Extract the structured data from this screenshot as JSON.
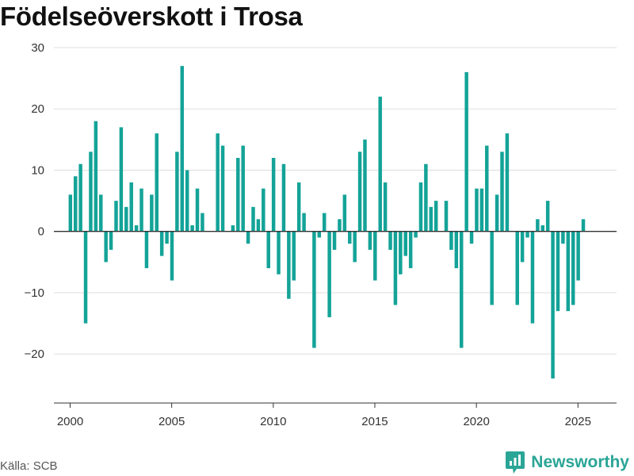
{
  "title": "Födelseöverskott i Trosa",
  "source": "Källa: SCB",
  "brand": "Newsworthy",
  "colors": {
    "bar": "#14a398",
    "grid": "#dddddd",
    "zero": "#333333",
    "brand": "#2aa596"
  },
  "chart_data": {
    "type": "bar",
    "title": "Födelseöverskott i Trosa",
    "xlabel": "",
    "ylabel": "",
    "ylim": [
      -28,
      30
    ],
    "xlim": [
      1999.2,
      2026.9
    ],
    "yticks": [
      30,
      20,
      10,
      0,
      -10,
      -20
    ],
    "ytick_labels": [
      "30",
      "20",
      "10",
      "0",
      "−10",
      "−20"
    ],
    "xticks": [
      2000,
      2005,
      2010,
      2015,
      2020,
      2025
    ],
    "xtick_labels": [
      "2000",
      "2005",
      "2010",
      "2015",
      "2020",
      "2025"
    ],
    "grid": true,
    "frequency": "quarterly",
    "series": [
      {
        "values": [
          6,
          9,
          11,
          -15,
          13,
          18,
          6,
          -5,
          -3,
          5,
          17,
          4,
          8,
          1,
          7,
          -6,
          6,
          16,
          -4,
          -2,
          -8,
          13,
          27,
          10,
          1,
          7,
          3,
          0,
          0,
          16,
          14,
          0,
          1,
          12,
          14,
          -2,
          4,
          2,
          7,
          -6,
          12,
          -7,
          11,
          -11,
          -8,
          8,
          3,
          0,
          -19,
          -1,
          3,
          -14,
          -3,
          2,
          6,
          -2,
          -5,
          13,
          15,
          -3,
          -8,
          22,
          8,
          -3,
          -12,
          -7,
          -4,
          -6,
          -1,
          8,
          11,
          4,
          5,
          0,
          5,
          -3,
          -6,
          -19,
          26,
          -2,
          7,
          7,
          14,
          -12,
          6,
          13,
          16,
          0,
          -12,
          -5,
          -1,
          -15,
          2,
          1,
          5,
          -24,
          -13,
          -2,
          -13,
          -12,
          -8,
          2
        ]
      }
    ]
  }
}
